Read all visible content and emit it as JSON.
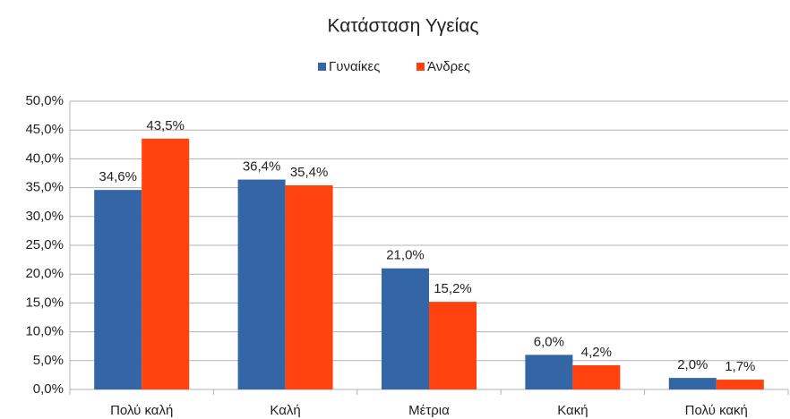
{
  "chart_data": {
    "type": "bar",
    "title": "Κατάσταση Υγείας",
    "categories": [
      "Πολύ καλή",
      "Καλή",
      "Μέτρια",
      "Κακή",
      "Πολύ κακή"
    ],
    "series": [
      {
        "name": "Γυναίκες",
        "color": "#3465a4",
        "values": [
          34.6,
          36.4,
          21.0,
          6.0,
          2.0
        ],
        "value_labels": [
          "34,6%",
          "36,4%",
          "21,0%",
          "6,0%",
          "2,0%"
        ]
      },
      {
        "name": "Άνδρες",
        "color": "#ff420e",
        "values": [
          43.5,
          35.4,
          15.2,
          4.2,
          1.7
        ],
        "value_labels": [
          "43,5%",
          "35,4%",
          "15,2%",
          "4,2%",
          "1,7%"
        ]
      }
    ],
    "ylim": [
      0,
      50
    ],
    "yticks": [
      {
        "value": 0,
        "label": "0,0%"
      },
      {
        "value": 5,
        "label": "5,0%"
      },
      {
        "value": 10,
        "label": "10,0%"
      },
      {
        "value": 15,
        "label": "15,0%"
      },
      {
        "value": 20,
        "label": "20,0%"
      },
      {
        "value": 25,
        "label": "25,0%"
      },
      {
        "value": 30,
        "label": "30,0%"
      },
      {
        "value": 35,
        "label": "35,0%"
      },
      {
        "value": 40,
        "label": "40,0%"
      },
      {
        "value": 45,
        "label": "45,0%"
      },
      {
        "value": 50,
        "label": "50,0%"
      }
    ],
    "grid": true,
    "legend": "top"
  }
}
